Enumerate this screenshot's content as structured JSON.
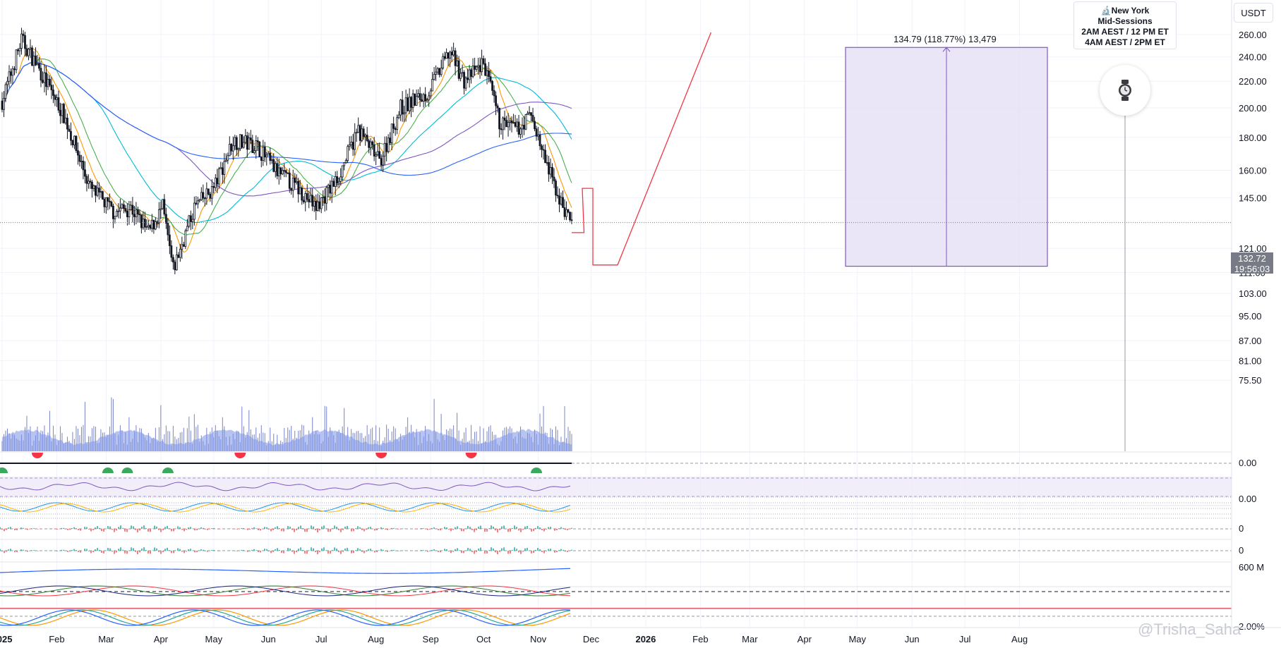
{
  "quote_currency": "USDT",
  "session_box": {
    "line1": "🔬New York",
    "line2": "Mid-Sessions",
    "line3": "2AM AEST / 12 PM ET",
    "line4": "4AM AEST / 2PM ET"
  },
  "watch_icon": "watch-icon",
  "measure": {
    "label": "134.79 (118.77%) 13,479",
    "from_price": 113.5,
    "to_price": 248.3
  },
  "last_price": {
    "value": "132.72",
    "countdown": "19:56:03"
  },
  "watermark": "@Trisha_Saha",
  "colors": {
    "candle_body": "#131722",
    "measure_fill": "#e6e0f5",
    "measure_border": "#7e57c2",
    "projection_line": "#f23645",
    "volume": "#7c93e8",
    "ma_200": "#2962ff",
    "ma_100": "#7e57c2",
    "ma_50": "#00bcd4",
    "ma_20": "#4caf50",
    "ma_10": "#ff9800",
    "bull_marker": "#3aa95b",
    "bear_marker": "#f23645"
  },
  "chart_data": {
    "type": "candlestick",
    "ylabel": "USDT",
    "log_scale": true,
    "ylim": [
      73,
      270
    ],
    "y_ticks": [
      "260.00",
      "240.00",
      "220.00",
      "200.00",
      "180.00",
      "160.00",
      "145.00",
      "132.72",
      "121.00",
      "111.00",
      "103.00",
      "95.00",
      "87.00",
      "81.00",
      "75.50"
    ],
    "x_ticks": [
      "2025",
      "Feb",
      "Mar",
      "Apr",
      "May",
      "Jun",
      "Jul",
      "Aug",
      "Sep",
      "Oct",
      "Nov",
      "Dec",
      "2026",
      "Feb",
      "Mar",
      "Apr",
      "May",
      "Jun",
      "Jul",
      "Aug"
    ],
    "indicator_ticks": [
      "0.00",
      "0.00",
      "0",
      "0",
      "600 M",
      "2.00%"
    ],
    "price_anchors": [
      {
        "date": "2025-01-01",
        "close": 205
      },
      {
        "date": "2025-01-12",
        "close": 255
      },
      {
        "date": "2025-01-20",
        "close": 235
      },
      {
        "date": "2025-02-05",
        "close": 195
      },
      {
        "date": "2025-02-20",
        "close": 150
      },
      {
        "date": "2025-03-05",
        "close": 138
      },
      {
        "date": "2025-03-15",
        "close": 140
      },
      {
        "date": "2025-03-25",
        "close": 128
      },
      {
        "date": "2025-04-02",
        "close": 140
      },
      {
        "date": "2025-04-08",
        "close": 112
      },
      {
        "date": "2025-04-20",
        "close": 140
      },
      {
        "date": "2025-05-01",
        "close": 150
      },
      {
        "date": "2025-05-12",
        "close": 178
      },
      {
        "date": "2025-05-25",
        "close": 175
      },
      {
        "date": "2025-06-05",
        "close": 160
      },
      {
        "date": "2025-06-20",
        "close": 148
      },
      {
        "date": "2025-06-28",
        "close": 140
      },
      {
        "date": "2025-07-10",
        "close": 155
      },
      {
        "date": "2025-07-22",
        "close": 185
      },
      {
        "date": "2025-08-03",
        "close": 165
      },
      {
        "date": "2025-08-15",
        "close": 200
      },
      {
        "date": "2025-08-30",
        "close": 210
      },
      {
        "date": "2025-09-12",
        "close": 245
      },
      {
        "date": "2025-09-20",
        "close": 220
      },
      {
        "date": "2025-10-01",
        "close": 235
      },
      {
        "date": "2025-10-10",
        "close": 190
      },
      {
        "date": "2025-10-20",
        "close": 185
      },
      {
        "date": "2025-10-28",
        "close": 195
      },
      {
        "date": "2025-11-05",
        "close": 165
      },
      {
        "date": "2025-11-15",
        "close": 140
      },
      {
        "date": "2025-11-20",
        "close": 132.72
      }
    ],
    "projection_path": [
      {
        "date": "2025-11-20",
        "price": 128
      },
      {
        "date": "2025-11-27",
        "price": 128
      },
      {
        "date": "2025-11-26",
        "price": 150
      },
      {
        "date": "2025-12-02",
        "price": 150
      },
      {
        "date": "2025-12-02",
        "price": 114
      },
      {
        "date": "2025-12-16",
        "price": 114
      },
      {
        "date": "2026-02-07",
        "price": 262
      }
    ]
  }
}
